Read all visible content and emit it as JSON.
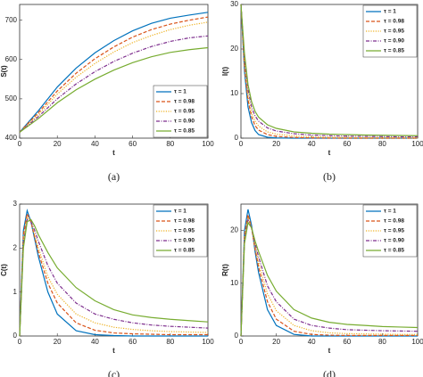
{
  "chart_data": [
    {
      "type": "line",
      "caption": "(a)",
      "xlabel": "t",
      "ylabel": "S(t)",
      "legend": "lower right",
      "x": [
        0,
        10,
        20,
        30,
        40,
        50,
        60,
        70,
        80,
        90,
        100
      ],
      "xlim": [
        0,
        100
      ],
      "xticks": [
        0,
        20,
        40,
        60,
        80,
        100
      ],
      "ylim": [
        400,
        740
      ],
      "yticks": [
        400,
        500,
        600,
        700
      ],
      "series": [
        {
          "name": "τ = 1",
          "color": "#0072bd",
          "dash": "solid",
          "values": [
            415,
            470,
            530,
            578,
            617,
            648,
            673,
            692,
            705,
            713,
            720
          ]
        },
        {
          "name": "τ = 0.98",
          "color": "#d95319",
          "dash": "dashed",
          "values": [
            415,
            465,
            520,
            565,
            602,
            632,
            657,
            676,
            690,
            700,
            708
          ]
        },
        {
          "name": "τ = 0.95",
          "color": "#edb120",
          "dash": "dotted",
          "values": [
            415,
            460,
            512,
            555,
            590,
            619,
            643,
            661,
            676,
            687,
            695
          ]
        },
        {
          "name": "τ = 0.90",
          "color": "#7e2f8e",
          "dash": "dashdot",
          "values": [
            415,
            455,
            500,
            538,
            569,
            595,
            616,
            633,
            646,
            655,
            660
          ]
        },
        {
          "name": "τ = 0.85",
          "color": "#77ac30",
          "dash": "solid",
          "values": [
            415,
            450,
            490,
            523,
            550,
            573,
            592,
            607,
            618,
            625,
            630
          ]
        }
      ]
    },
    {
      "type": "line",
      "caption": "(b)",
      "xlabel": "t",
      "ylabel": "I(t)",
      "legend": "upper right",
      "x": [
        0,
        2,
        4,
        6,
        8,
        10,
        15,
        20,
        30,
        40,
        50,
        60,
        70,
        80,
        90,
        100
      ],
      "xlim": [
        0,
        100
      ],
      "xticks": [
        0,
        20,
        40,
        60,
        80,
        100
      ],
      "ylim": [
        0,
        30
      ],
      "yticks": [
        0,
        10,
        20,
        30
      ],
      "series": [
        {
          "name": "τ = 1",
          "color": "#0072bd",
          "dash": "solid",
          "values": [
            30,
            15,
            7,
            3.5,
            1.7,
            0.8,
            0.2,
            0.05,
            0,
            0,
            0,
            0,
            0,
            0,
            0,
            0
          ]
        },
        {
          "name": "τ = 0.98",
          "color": "#d95319",
          "dash": "dashed",
          "values": [
            30,
            16,
            8.5,
            4.8,
            2.8,
            1.8,
            0.8,
            0.4,
            0.15,
            0.05,
            0.02,
            0,
            0,
            0,
            0,
            0
          ]
        },
        {
          "name": "τ = 0.95",
          "color": "#edb120",
          "dash": "dotted",
          "values": [
            30,
            17,
            9.5,
            5.8,
            3.8,
            2.7,
            1.4,
            0.9,
            0.5,
            0.3,
            0.2,
            0.15,
            0.1,
            0.08,
            0.06,
            0.05
          ]
        },
        {
          "name": "τ = 0.90",
          "color": "#7e2f8e",
          "dash": "dashdot",
          "values": [
            30,
            18,
            11,
            7,
            5,
            3.8,
            2.3,
            1.6,
            1,
            0.7,
            0.55,
            0.45,
            0.4,
            0.35,
            0.3,
            0.3
          ]
        },
        {
          "name": "τ = 0.85",
          "color": "#77ac30",
          "dash": "solid",
          "values": [
            30,
            19,
            12,
            8.2,
            6,
            4.7,
            3,
            2.2,
            1.4,
            1.1,
            0.9,
            0.8,
            0.7,
            0.65,
            0.6,
            0.55
          ]
        }
      ]
    },
    {
      "type": "line",
      "caption": "(c)",
      "xlabel": "t",
      "ylabel": "C(t)",
      "legend": "upper right",
      "x": [
        0,
        2,
        4,
        6,
        8,
        10,
        15,
        20,
        30,
        40,
        50,
        60,
        70,
        80,
        90,
        100
      ],
      "xlim": [
        0,
        100
      ],
      "xticks": [
        0,
        20,
        40,
        60,
        80,
        100
      ],
      "ylim": [
        0,
        3
      ],
      "yticks": [
        0,
        1,
        2,
        3
      ],
      "series": [
        {
          "name": "τ = 1",
          "color": "#0072bd",
          "dash": "solid",
          "values": [
            0,
            2.4,
            2.85,
            2.6,
            2.2,
            1.8,
            1.0,
            0.5,
            0.12,
            0.03,
            0.01,
            0,
            0,
            0,
            0,
            0
          ]
        },
        {
          "name": "τ = 0.98",
          "color": "#d95319",
          "dash": "dashed",
          "values": [
            0,
            2.3,
            2.78,
            2.6,
            2.25,
            1.9,
            1.2,
            0.75,
            0.3,
            0.13,
            0.07,
            0.05,
            0.04,
            0.03,
            0.03,
            0.03
          ]
        },
        {
          "name": "τ = 0.95",
          "color": "#edb120",
          "dash": "dotted",
          "values": [
            0,
            2.2,
            2.7,
            2.6,
            2.3,
            2.0,
            1.35,
            0.95,
            0.5,
            0.3,
            0.2,
            0.15,
            0.12,
            0.1,
            0.09,
            0.08
          ]
        },
        {
          "name": "τ = 0.90",
          "color": "#7e2f8e",
          "dash": "dashdot",
          "values": [
            0,
            2.1,
            2.65,
            2.6,
            2.4,
            2.15,
            1.6,
            1.2,
            0.75,
            0.5,
            0.38,
            0.3,
            0.25,
            0.22,
            0.2,
            0.18
          ]
        },
        {
          "name": "τ = 0.85",
          "color": "#77ac30",
          "dash": "solid",
          "values": [
            0,
            2.0,
            2.6,
            2.65,
            2.5,
            2.3,
            1.9,
            1.55,
            1.1,
            0.8,
            0.6,
            0.48,
            0.42,
            0.38,
            0.35,
            0.32
          ]
        }
      ]
    },
    {
      "type": "line",
      "caption": "(d)",
      "xlabel": "t",
      "ylabel": "R(t)",
      "legend": "upper right",
      "x": [
        0,
        2,
        4,
        6,
        8,
        10,
        15,
        20,
        30,
        40,
        50,
        60,
        70,
        80,
        90,
        100
      ],
      "xlim": [
        0,
        100
      ],
      "xticks": [
        0,
        20,
        40,
        60,
        80,
        100
      ],
      "ylim": [
        0,
        25
      ],
      "yticks": [
        0,
        10,
        20
      ],
      "series": [
        {
          "name": "τ = 1",
          "color": "#0072bd",
          "dash": "solid",
          "values": [
            0,
            20,
            24,
            21,
            16,
            12,
            5,
            2,
            0.3,
            0,
            0,
            0,
            0,
            0,
            0,
            0
          ]
        },
        {
          "name": "τ = 0.98",
          "color": "#d95319",
          "dash": "dashed",
          "values": [
            0,
            19,
            23,
            20.5,
            16.5,
            13,
            6.5,
            3.2,
            0.9,
            0.3,
            0.15,
            0.1,
            0.1,
            0.1,
            0.1,
            0.1
          ]
        },
        {
          "name": "τ = 0.95",
          "color": "#edb120",
          "dash": "dotted",
          "values": [
            0,
            18.5,
            22.5,
            20.5,
            17,
            14,
            8,
            4.8,
            2,
            1,
            0.6,
            0.45,
            0.4,
            0.35,
            0.3,
            0.3
          ]
        },
        {
          "name": "τ = 0.90",
          "color": "#7e2f8e",
          "dash": "dashdot",
          "values": [
            0,
            18,
            22,
            20.5,
            17.5,
            15,
            9.5,
            6.5,
            3.2,
            2,
            1.5,
            1.2,
            1.1,
            1.0,
            0.95,
            0.9
          ]
        },
        {
          "name": "τ = 0.85",
          "color": "#77ac30",
          "dash": "solid",
          "values": [
            0,
            17.5,
            21.5,
            20.5,
            18,
            16,
            11.5,
            8.5,
            5,
            3.4,
            2.6,
            2.2,
            2,
            1.8,
            1.7,
            1.6
          ]
        }
      ]
    }
  ]
}
